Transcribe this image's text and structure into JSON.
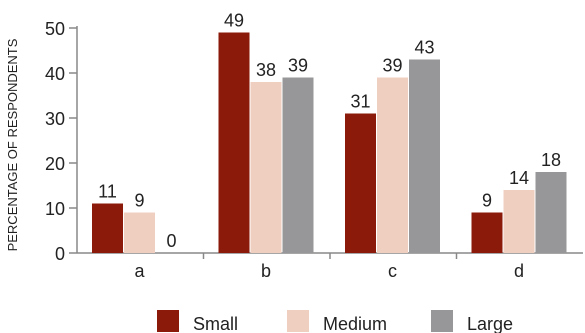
{
  "chart_data": {
    "type": "bar",
    "categories": [
      "a",
      "b",
      "c",
      "d"
    ],
    "series": [
      {
        "name": "Small",
        "color": "#8b1a0a",
        "values": [
          11,
          49,
          31,
          9
        ]
      },
      {
        "name": "Medium",
        "color": "#efcfc0",
        "values": [
          9,
          38,
          39,
          14
        ]
      },
      {
        "name": "Large",
        "color": "#97979a",
        "values": [
          0,
          39,
          43,
          18
        ]
      }
    ],
    "ylabel": "PERCENTAGE OF RESPONDENTS",
    "xlabel": "",
    "ylim": [
      0,
      50
    ],
    "yticks": [
      0,
      10,
      20,
      30,
      40,
      50
    ],
    "grid": false,
    "legend_position": "bottom"
  }
}
